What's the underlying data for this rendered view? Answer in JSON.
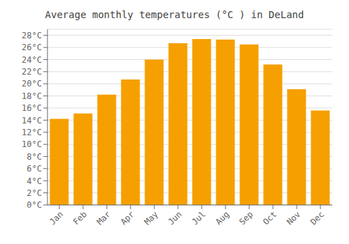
{
  "chart_data": {
    "type": "bar",
    "title": "Average monthly temperatures (°C ) in DeLand",
    "categories": [
      "Jan",
      "Feb",
      "Mar",
      "Apr",
      "May",
      "Jun",
      "Jul",
      "Aug",
      "Sep",
      "Oct",
      "Nov",
      "Dec"
    ],
    "values": [
      14.2,
      15.1,
      18.2,
      20.7,
      24.0,
      26.7,
      27.4,
      27.3,
      26.5,
      23.2,
      19.1,
      15.6
    ],
    "color": "#F5A000",
    "ylim": [
      0,
      29
    ],
    "yticks": [
      {
        "value": 0,
        "label": "0°C"
      },
      {
        "value": 2,
        "label": "2°C"
      },
      {
        "value": 4,
        "label": "4°C"
      },
      {
        "value": 6,
        "label": "6°C"
      },
      {
        "value": 8,
        "label": "8°C"
      },
      {
        "value": 10,
        "label": "10°C"
      },
      {
        "value": 12,
        "label": "12°C"
      },
      {
        "value": 14,
        "label": "14°C"
      },
      {
        "value": 16,
        "label": "16°C"
      },
      {
        "value": 18,
        "label": "18°C"
      },
      {
        "value": 20,
        "label": "20°C"
      },
      {
        "value": 22,
        "label": "22°C"
      },
      {
        "value": 24,
        "label": "24°C"
      },
      {
        "value": 26,
        "label": "26°C"
      },
      {
        "value": 28,
        "label": "28°C"
      }
    ],
    "grid": true
  }
}
